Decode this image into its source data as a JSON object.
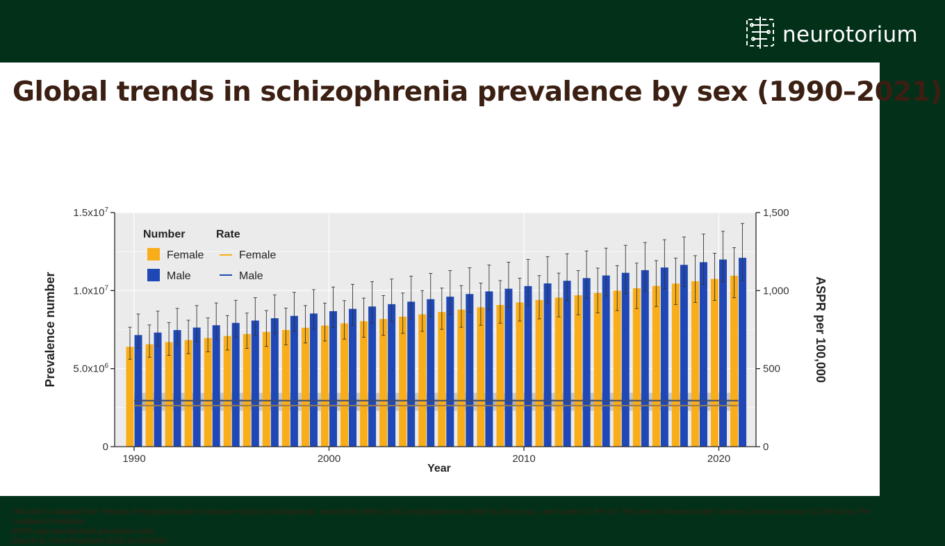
{
  "brand": {
    "name": "neurotorium",
    "logo_icon": "brain-circuit-icon"
  },
  "slide": {
    "title": "Global trends in schizophrenia prevalence by sex (1990–2021)"
  },
  "footer": {
    "attribution": "This work is adapted from ‘Results of the global burden of disease study for schizophrenia: trends from 1990 to 2021 and projections to 2050’ by Zhan et al., used under CC-BY-4.0. This work is licensed under Creative Commons license CC-BY-SA by The Lundbeck Foundation.",
    "abbreviation": "ASPR=age-standardized prevalence rates.",
    "reference": "Zhan et al. Front Psychiatry 2025;16:1629032;"
  },
  "colors": {
    "female": "#f9ad19",
    "male": "#1f48b6",
    "plot_bg": "#ebebeb",
    "title": "#3b1f12",
    "brand_bg": "#033019"
  },
  "chart_data": {
    "type": "bar",
    "xlabel": "Year",
    "ylabel": "Prevalence number",
    "y2label": "ASPR per 100,000",
    "ylim": [
      0,
      15000000
    ],
    "y2lim": [
      0,
      1500
    ],
    "y_ticks": [
      {
        "value": 0,
        "label": "0"
      },
      {
        "value": 5000000,
        "label": "5.0x10",
        "exp": "6"
      },
      {
        "value": 10000000,
        "label": "1.0x10",
        "exp": "7"
      },
      {
        "value": 15000000,
        "label": "1.5x10",
        "exp": "7"
      }
    ],
    "y2_ticks": [
      {
        "value": 0,
        "label": "0"
      },
      {
        "value": 500,
        "label": "500"
      },
      {
        "value": 1000,
        "label": "1,000"
      },
      {
        "value": 1500,
        "label": "1,500"
      }
    ],
    "x_ticks": [
      {
        "value": 1990,
        "label": "1990"
      },
      {
        "value": 2000,
        "label": "2000"
      },
      {
        "value": 2010,
        "label": "2010"
      },
      {
        "value": 2020,
        "label": "2020"
      }
    ],
    "x": [
      1990,
      1991,
      1992,
      1993,
      1994,
      1995,
      1996,
      1997,
      1998,
      1999,
      2000,
      2001,
      2002,
      2003,
      2004,
      2005,
      2006,
      2007,
      2008,
      2009,
      2010,
      2011,
      2012,
      2013,
      2014,
      2015,
      2016,
      2017,
      2018,
      2019,
      2020,
      2021
    ],
    "legend": {
      "number_header": "Number",
      "rate_header": "Rate",
      "female_label": "Female",
      "male_label": "Male",
      "position": "top-left"
    },
    "series": [
      {
        "name": "Female",
        "kind": "number",
        "values": [
          6400000,
          6560000,
          6700000,
          6830000,
          6960000,
          7090000,
          7220000,
          7350000,
          7480000,
          7620000,
          7760000,
          7900000,
          8040000,
          8180000,
          8330000,
          8480000,
          8630000,
          8780000,
          8930000,
          9080000,
          9240000,
          9400000,
          9550000,
          9700000,
          9850000,
          10000000,
          10150000,
          10300000,
          10450000,
          10600000,
          10750000,
          10950000
        ],
        "upper": [
          7650000,
          7800000,
          7950000,
          8100000,
          8250000,
          8400000,
          8560000,
          8720000,
          8880000,
          9040000,
          9200000,
          9360000,
          9520000,
          9680000,
          9840000,
          10000000,
          10160000,
          10320000,
          10480000,
          10640000,
          10800000,
          10960000,
          11120000,
          11280000,
          11440000,
          11600000,
          11760000,
          11920000,
          12080000,
          12240000,
          12400000,
          12750000
        ],
        "lower": [
          5600000,
          5730000,
          5850000,
          5960000,
          6080000,
          6190000,
          6300000,
          6420000,
          6530000,
          6640000,
          6770000,
          6890000,
          7010000,
          7130000,
          7260000,
          7390000,
          7520000,
          7650000,
          7780000,
          7910000,
          8050000,
          8190000,
          8320000,
          8450000,
          8580000,
          8720000,
          8850000,
          8980000,
          9110000,
          9240000,
          9370000,
          9540000
        ]
      },
      {
        "name": "Male",
        "kind": "number",
        "values": [
          7150000,
          7310000,
          7470000,
          7630000,
          7780000,
          7930000,
          8080000,
          8230000,
          8380000,
          8530000,
          8680000,
          8830000,
          8980000,
          9130000,
          9290000,
          9450000,
          9610000,
          9780000,
          9950000,
          10120000,
          10290000,
          10460000,
          10630000,
          10800000,
          10970000,
          11140000,
          11310000,
          11480000,
          11650000,
          11820000,
          11990000,
          12100000
        ],
        "upper": [
          8500000,
          8680000,
          8860000,
          9040000,
          9210000,
          9380000,
          9550000,
          9720000,
          9890000,
          10060000,
          10230000,
          10400000,
          10570000,
          10740000,
          10920000,
          11100000,
          11280000,
          11460000,
          11640000,
          11820000,
          12000000,
          12180000,
          12360000,
          12540000,
          12720000,
          12900000,
          13080000,
          13260000,
          13440000,
          13620000,
          13800000,
          14300000
        ],
        "lower": [
          6300000,
          6440000,
          6580000,
          6720000,
          6860000,
          6990000,
          7120000,
          7250000,
          7380000,
          7510000,
          7650000,
          7780000,
          7910000,
          8040000,
          8180000,
          8320000,
          8470000,
          8610000,
          8760000,
          8910000,
          9060000,
          9210000,
          9360000,
          9510000,
          9660000,
          9810000,
          9960000,
          10110000,
          10260000,
          10410000,
          10560000,
          10630000
        ]
      },
      {
        "name": "Female",
        "kind": "rate",
        "values": [
          263,
          263,
          263,
          263,
          263,
          263,
          263,
          263,
          263,
          263,
          263,
          263,
          263,
          263,
          263,
          263,
          263,
          263,
          263,
          263,
          263,
          263,
          263,
          263,
          263,
          263,
          263,
          263,
          263,
          263,
          263,
          263
        ],
        "upper": [
          305,
          305,
          305,
          305,
          305,
          305,
          305,
          305,
          305,
          305,
          305,
          305,
          305,
          305,
          305,
          305,
          305,
          305,
          305,
          305,
          305,
          305,
          305,
          305,
          305,
          305,
          305,
          305,
          305,
          305,
          305,
          305
        ],
        "lower": [
          230,
          230,
          230,
          230,
          230,
          230,
          230,
          230,
          230,
          230,
          230,
          230,
          230,
          230,
          230,
          230,
          230,
          230,
          230,
          230,
          230,
          230,
          230,
          230,
          230,
          230,
          230,
          230,
          230,
          230,
          230,
          230
        ]
      },
      {
        "name": "Male",
        "kind": "rate",
        "values": [
          295,
          295,
          295,
          295,
          295,
          295,
          295,
          295,
          295,
          295,
          295,
          295,
          295,
          295,
          295,
          295,
          295,
          295,
          295,
          295,
          295,
          295,
          295,
          295,
          295,
          295,
          295,
          295,
          295,
          295,
          295,
          295
        ],
        "upper": [
          345,
          345,
          345,
          345,
          345,
          345,
          345,
          345,
          345,
          345,
          345,
          345,
          345,
          345,
          345,
          345,
          345,
          345,
          345,
          345,
          345,
          345,
          345,
          345,
          345,
          345,
          345,
          345,
          345,
          345,
          345,
          345
        ],
        "lower": [
          258,
          258,
          258,
          258,
          258,
          258,
          258,
          258,
          258,
          258,
          258,
          258,
          258,
          258,
          258,
          258,
          258,
          258,
          258,
          258,
          258,
          258,
          258,
          258,
          258,
          258,
          258,
          258,
          258,
          258,
          258,
          258
        ]
      }
    ]
  }
}
